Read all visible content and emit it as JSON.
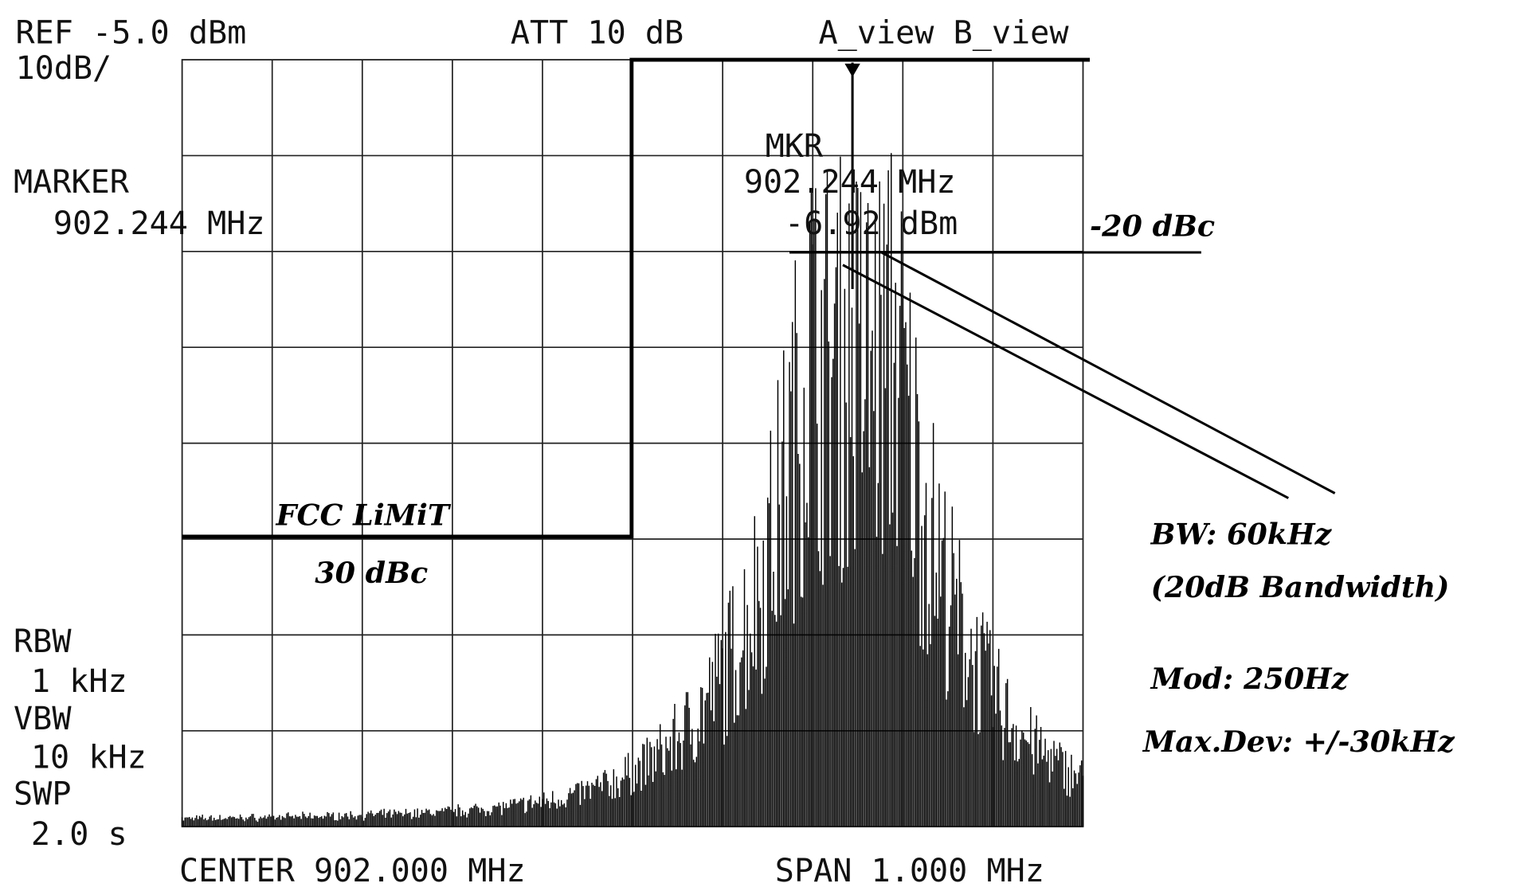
{
  "header": {
    "ref": "REF -5.0 dBm",
    "scale": "10dB/",
    "attenuation": "ATT 10 dB",
    "views": "A_view B_view"
  },
  "marker": {
    "label": "MARKER",
    "frequency": "902.244 MHz"
  },
  "marker_readout": {
    "label": "MKR",
    "frequency": "902.244 MHz",
    "level": "-6.92 dBm"
  },
  "settings": {
    "rbw_label": "RBW",
    "rbw": "1 kHz",
    "vbw_label": "VBW",
    "vbw": "10 kHz",
    "swp_label": "SWP",
    "swp": "2.0 s"
  },
  "footer": {
    "center": "CENTER 902.000 MHz",
    "span": "SPAN 1.000 MHz"
  },
  "annotations": {
    "limit_title": "FCC LiMiT",
    "limit_value": "30 dBc",
    "minus_20": "-20 dBc",
    "bw": "BW: 60kHz",
    "bw_note": "(20dB Bandwidth)",
    "mod": "Mod: 250Hz",
    "max_dev": "Max.Dev: +/-30kHz"
  }
}
